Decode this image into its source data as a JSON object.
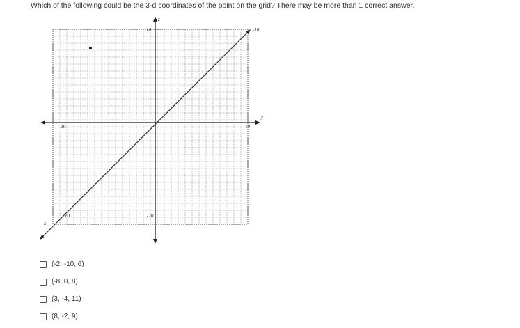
{
  "question": "Which of the following could be the 3-d coordinates of the point on the grid? There may be more than 1 correct answer.",
  "graph": {
    "labels": {
      "z_axis": "z",
      "y_axis": "y",
      "x_axis": "x",
      "z_top": "10",
      "z_bottom": "-10",
      "y_left": "-10",
      "y_right": "10",
      "x_far": "-10",
      "x_near": "10"
    }
  },
  "options": [
    "(-2, -10, 6)",
    "(-8, 0, 8)",
    "(3, -4, 11)",
    "(8, -2, 9)"
  ]
}
